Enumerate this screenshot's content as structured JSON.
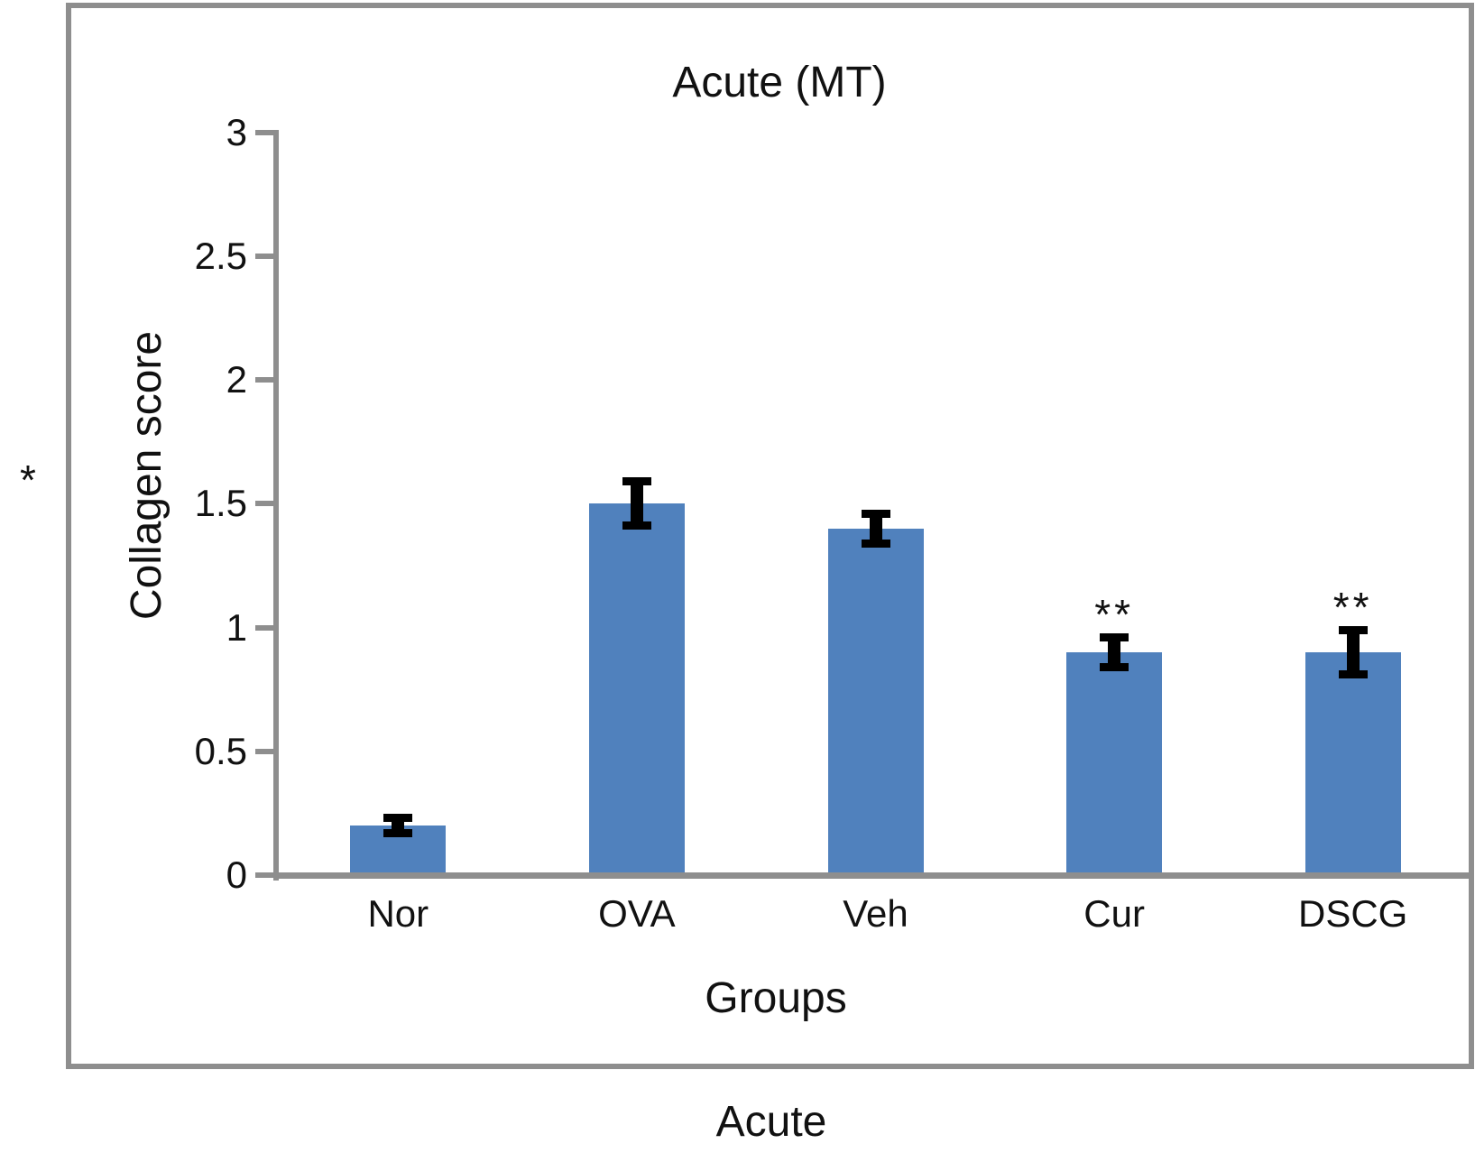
{
  "figure": {
    "title": "Acute (MT)",
    "y_axis_label": "Collagen score",
    "x_axis_label": "Groups",
    "bottom_caption": "Acute",
    "left_margin_annotation": "*"
  },
  "chart_data": {
    "type": "bar",
    "title": "Acute (MT)",
    "xlabel": "Groups",
    "ylabel": "Collagen score",
    "categories": [
      "Nor",
      "OVA",
      "Veh",
      "Cur",
      "DSCG"
    ],
    "values": [
      0.2,
      1.5,
      1.4,
      0.9,
      0.9
    ],
    "error_bars": [
      0.03,
      0.09,
      0.06,
      0.06,
      0.09
    ],
    "significance_labels": [
      "",
      "",
      "",
      "**",
      "**"
    ],
    "ylim": [
      0,
      3
    ],
    "ytick_labels": [
      "0",
      "0.5",
      "1",
      "1.5",
      "2",
      "2.5",
      "3"
    ],
    "grid": false,
    "legend": "none",
    "bar_color": "#5081bd",
    "axis_color": "#8e8e8e",
    "error_bar_color": "#000000",
    "caption_below_figure": "Acute",
    "annotation_outside_frame": "*"
  }
}
